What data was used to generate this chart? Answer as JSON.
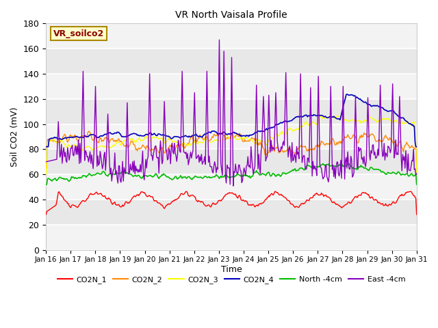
{
  "title": "VR North Vaisala Profile",
  "ylabel": "Soil CO2 (mV)",
  "xlabel": "Time",
  "annotation": "VR_soilco2",
  "ylim": [
    0,
    180
  ],
  "yticks": [
    0,
    20,
    40,
    60,
    80,
    100,
    120,
    140,
    160,
    180
  ],
  "xtick_labels": [
    "Jan 16",
    "Jan 17",
    "Jan 18",
    "Jan 19",
    "Jan 20",
    "Jan 21",
    "Jan 22",
    "Jan 23",
    "Jan 24",
    "Jan 25",
    "Jan 26",
    "Jan 27",
    "Jan 28",
    "Jan 29",
    "Jan 30",
    "Jan 31"
  ],
  "background_color": "#e8e8e8",
  "plot_bg_color": "#f0f0f0",
  "line_colors": {
    "CO2N_1": "#ff0000",
    "CO2N_2": "#ff8800",
    "CO2N_3": "#ffff00",
    "CO2N_4": "#0000bb",
    "North_4cm": "#00bb00",
    "East_4cm": "#8800bb"
  },
  "legend_labels": [
    "CO2N_1",
    "CO2N_2",
    "CO2N_3",
    "CO2N_4",
    "North -4cm",
    "East -4cm"
  ],
  "figsize": [
    6.4,
    4.8
  ],
  "dpi": 100
}
